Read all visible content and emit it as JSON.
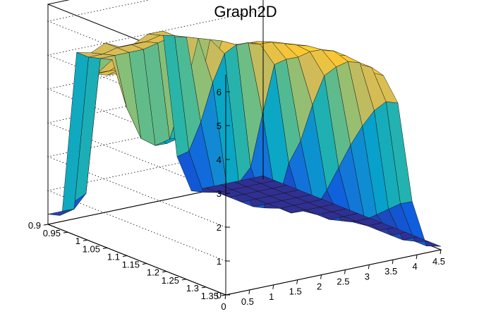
{
  "chart_data": {
    "type": "surface",
    "title": "Graph2D",
    "xlabel": "",
    "ylabel": "",
    "zlabel": "",
    "xlim": [
      0,
      4.5
    ],
    "ylim": [
      0.9,
      1.35
    ],
    "zlim": [
      0,
      6.5
    ],
    "x_ticks": [
      "0",
      "0.5",
      "1",
      "1.5",
      "2",
      "2.5",
      "3",
      "3.5",
      "4",
      "4.5"
    ],
    "y_ticks": [
      "0.9",
      "0.95",
      "1",
      "1.05",
      "1.1",
      "1.15",
      "1.2",
      "1.25",
      "1.3",
      "1.35"
    ],
    "z_ticks": [
      "0",
      "1",
      "2",
      "3",
      "4",
      "5",
      "6"
    ],
    "grid": true,
    "palette": [
      "#352a87",
      "#0f5cdd",
      "#1481d6",
      "#06a4ca",
      "#2eb7a4",
      "#87bf77",
      "#d1bb59",
      "#fec832",
      "#f9fb0e"
    ],
    "grid_x": [
      0,
      0.3,
      0.6,
      0.9,
      1.2,
      1.5,
      1.8,
      2.1,
      2.4,
      2.7,
      3.0,
      3.3,
      3.6,
      3.9,
      4.2,
      4.5
    ],
    "grid_y": [
      0.9,
      0.93,
      0.96,
      0.99,
      1.02,
      1.05,
      1.08,
      1.11,
      1.14,
      1.17,
      1.2,
      1.23,
      1.26,
      1.29,
      1.32,
      1.35
    ],
    "z_values": [
      [
        0.3,
        0.3,
        4.9,
        4.8,
        5.0,
        4.8,
        4.8,
        5.0,
        5.0,
        1.2,
        0.1,
        0.1,
        0.1,
        0.1,
        0.1,
        0.1
      ],
      [
        0.4,
        0.5,
        4.9,
        4.9,
        5.0,
        5.0,
        5.0,
        5.1,
        5.0,
        1.5,
        0.2,
        0.1,
        0.1,
        0.1,
        0.1,
        0.1
      ],
      [
        0.9,
        1.1,
        5.0,
        5.0,
        5.0,
        5.0,
        5.1,
        5.2,
        5.1,
        2.5,
        0.4,
        0.1,
        0.1,
        0.1,
        0.1,
        0.1
      ],
      [
        4.9,
        4.8,
        5.1,
        3.6,
        2.6,
        2.3,
        2.4,
        3.6,
        5.2,
        3.8,
        0.6,
        0.1,
        0.1,
        0.1,
        0.1,
        0.1
      ],
      [
        5.0,
        5.0,
        5.2,
        3.9,
        2.8,
        2.5,
        2.6,
        3.4,
        5.3,
        4.8,
        0.9,
        0.1,
        0.1,
        0.1,
        0.1,
        0.1
      ],
      [
        5.1,
        5.2,
        5.3,
        4.7,
        3.6,
        3.2,
        3.4,
        4.3,
        5.4,
        5.2,
        1.5,
        0.2,
        0.1,
        0.1,
        0.1,
        0.1
      ],
      [
        5.3,
        5.4,
        5.4,
        5.2,
        4.8,
        4.6,
        4.8,
        5.1,
        5.4,
        5.4,
        3.2,
        0.4,
        0.1,
        0.1,
        0.1,
        0.1
      ],
      [
        5.5,
        5.5,
        5.6,
        5.6,
        5.5,
        5.5,
        5.5,
        5.5,
        5.6,
        5.5,
        4.8,
        1.8,
        0.3,
        0.1,
        0.1,
        0.1
      ],
      [
        5.6,
        5.3,
        5.1,
        5.4,
        5.6,
        5.8,
        5.9,
        5.8,
        5.8,
        5.7,
        5.1,
        2.6,
        0.5,
        0.1,
        0.1,
        0.1
      ],
      [
        5.7,
        5.4,
        5.2,
        5.5,
        5.7,
        5.9,
        6.0,
        5.9,
        5.9,
        5.8,
        5.3,
        3.8,
        1.2,
        0.2,
        0.1,
        0.1
      ],
      [
        5.7,
        5.6,
        5.7,
        5.8,
        5.9,
        6.0,
        6.1,
        6.0,
        6.0,
        5.9,
        5.6,
        4.8,
        2.0,
        0.3,
        0.1,
        0.1
      ],
      [
        5.7,
        5.8,
        5.9,
        6.0,
        6.1,
        6.2,
        6.2,
        6.1,
        6.1,
        6.0,
        5.8,
        5.2,
        2.8,
        0.5,
        0.1,
        0.1
      ],
      [
        5.6,
        5.8,
        5.9,
        6.0,
        6.1,
        6.2,
        6.2,
        6.2,
        6.1,
        6.0,
        5.9,
        5.5,
        3.5,
        0.8,
        0.1,
        0.1
      ],
      [
        5.6,
        5.7,
        5.8,
        5.9,
        6.0,
        6.1,
        6.1,
        6.1,
        6.0,
        6.0,
        5.9,
        5.6,
        4.1,
        1.1,
        0.1,
        0.1
      ],
      [
        5.5,
        5.6,
        5.7,
        5.8,
        5.9,
        6.0,
        6.0,
        6.0,
        6.0,
        5.9,
        5.8,
        5.6,
        4.5,
        1.4,
        0.2,
        0.1
      ],
      [
        5.4,
        5.5,
        5.6,
        5.7,
        5.8,
        5.9,
        5.9,
        5.9,
        5.9,
        5.8,
        5.7,
        5.5,
        4.6,
        1.6,
        0.2,
        0.1
      ]
    ]
  }
}
